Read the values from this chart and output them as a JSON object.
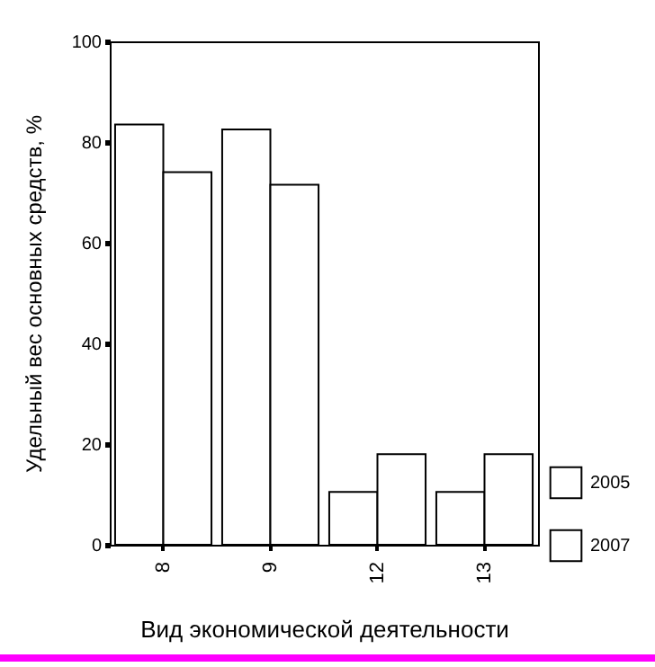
{
  "chart_data": {
    "type": "bar",
    "xlabel": "Вид экономической деятельности",
    "ylabel": "Удельный вес основных средств, %",
    "categories": [
      "8",
      "9",
      "12",
      "13"
    ],
    "series": [
      {
        "name": "2005",
        "color": "#ffffff",
        "values": [
          83.5,
          82.5,
          10.5,
          10.5
        ]
      },
      {
        "name": "2007",
        "color": "#ffffff",
        "values": [
          74,
          71.5,
          18,
          18
        ]
      }
    ],
    "ylim": [
      0,
      100
    ],
    "yticks": [
      0,
      20,
      40,
      60,
      80,
      100
    ],
    "grid": false,
    "legend": "bottom right"
  }
}
